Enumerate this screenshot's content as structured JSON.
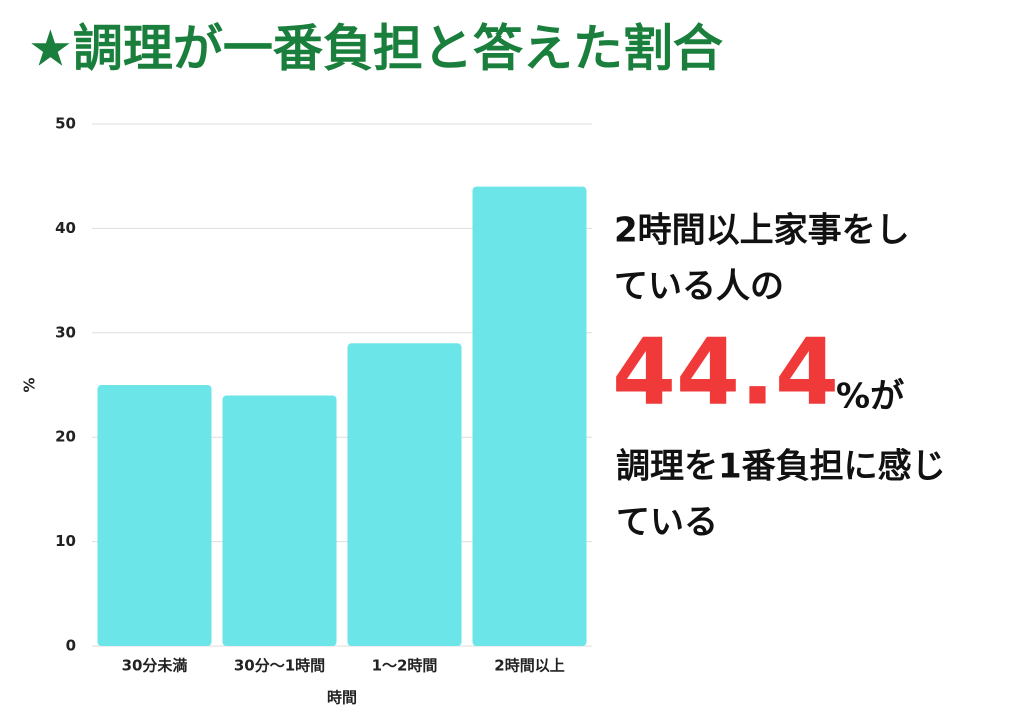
{
  "chart_data": {
    "type": "bar",
    "title": "★調理が一番負担と答えた割合",
    "x_label": "時間",
    "y_label": "%",
    "categories": [
      "30分未満",
      "30分〜1時間",
      "1〜2時間",
      "2時間以上"
    ],
    "values": [
      25,
      24,
      29,
      44
    ],
    "color": "#6ce5e8",
    "ylim": [
      0,
      50
    ],
    "yticks": [
      0,
      10,
      20,
      30,
      40,
      50
    ],
    "grid": true,
    "annotations": {
      "lead": [
        "2時間以上家事をし",
        "ている人の"
      ],
      "highlight": "44.4",
      "highlight_suffix": "%が",
      "tail": [
        "調理を1番負担に感じ",
        "ている"
      ]
    }
  }
}
